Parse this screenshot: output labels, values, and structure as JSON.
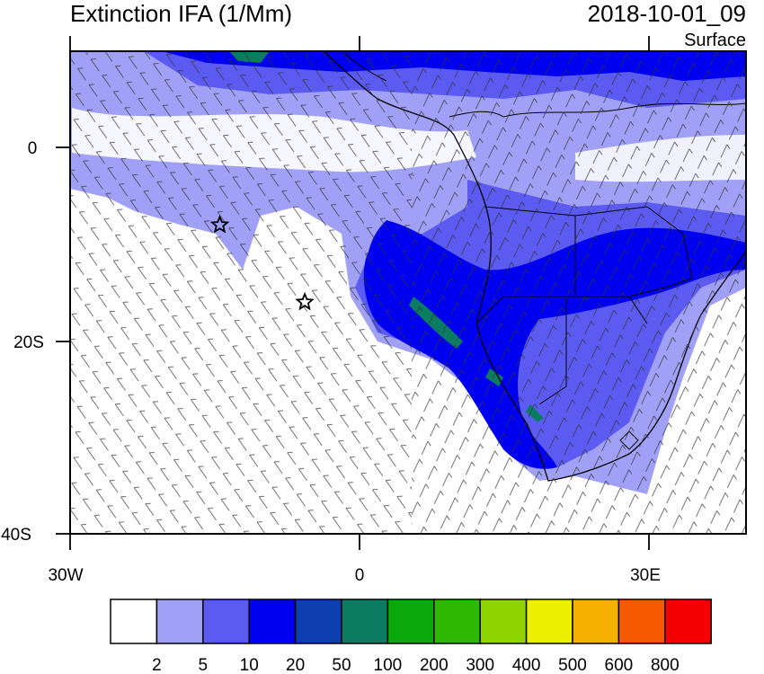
{
  "title": "Extinction IFA (1/Mm)",
  "timestamp": "2018-10-01_09",
  "level": "Surface",
  "lat_labels": [
    "0",
    "20S",
    "40S"
  ],
  "lon_labels": [
    "30W",
    "0",
    "30E"
  ],
  "colorbar": {
    "colors": [
      "#ffffff",
      "#a0a0f7",
      "#5b5bf2",
      "#0000f0",
      "#0d3fb0",
      "#0b7b62",
      "#0aa80a",
      "#2eb800",
      "#8fd400",
      "#eaf000",
      "#f5b000",
      "#f55a00",
      "#f50000"
    ],
    "labels": [
      "2",
      "5",
      "10",
      "20",
      "50",
      "100",
      "200",
      "300",
      "400",
      "500",
      "600",
      "800"
    ]
  },
  "markers": [
    {
      "symbol": "star",
      "lon": -14.5,
      "lat": -8.0
    },
    {
      "symbol": "star",
      "lon": -5.7,
      "lat": -16.0
    }
  ]
}
